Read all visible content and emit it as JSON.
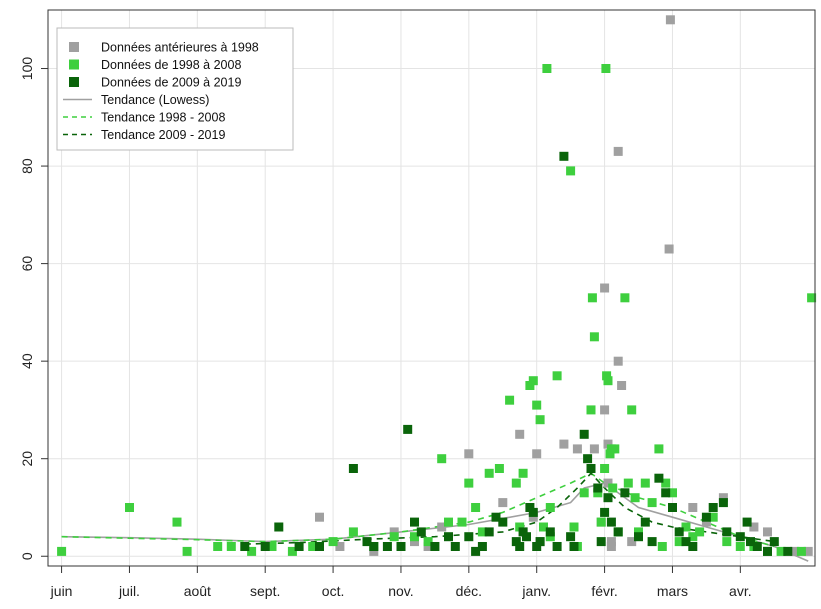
{
  "chart_data": {
    "type": "scatter",
    "title": "",
    "xlabel": "",
    "ylabel": "",
    "x_ticks": [
      "juin",
      "juil.",
      "août",
      "sept.",
      "oct.",
      "nov.",
      "déc.",
      "janv.",
      "févr.",
      "mars",
      "avr."
    ],
    "y_ticks": [
      0,
      20,
      40,
      60,
      80,
      100
    ],
    "ylim": [
      -2,
      112
    ],
    "xlim": [
      -0.2,
      11.1
    ],
    "grid": true,
    "legend_position": "top-left",
    "legend": [
      {
        "label": "Données antérieures à 1998",
        "kind": "square",
        "color": "#a0a0a0"
      },
      {
        "label": "Données de 1998 à 2008",
        "kind": "square",
        "color": "#3ecf3e"
      },
      {
        "label": "Données de 2009 à 2019",
        "kind": "square",
        "color": "#0a640a"
      },
      {
        "label": "Tendance (Lowess)",
        "kind": "line",
        "color": "#a0a0a0"
      },
      {
        "label": "Tendance 1998 - 2008",
        "kind": "dashed",
        "color": "#3ecf3e"
      },
      {
        "label": "Tendance 2009 - 2019",
        "kind": "dashed",
        "color": "#0a640a"
      }
    ],
    "series": [
      {
        "name": "Données antérieures à 1998",
        "color": "#a0a0a0",
        "points": [
          [
            3.8,
            8
          ],
          [
            4.1,
            2
          ],
          [
            4.6,
            1
          ],
          [
            4.9,
            5
          ],
          [
            5.2,
            3
          ],
          [
            5.4,
            2
          ],
          [
            5.6,
            6
          ],
          [
            6.0,
            21
          ],
          [
            6.5,
            11
          ],
          [
            6.75,
            25
          ],
          [
            6.8,
            5
          ],
          [
            6.95,
            8
          ],
          [
            7.0,
            21
          ],
          [
            7.05,
            3
          ],
          [
            7.4,
            23
          ],
          [
            7.6,
            22
          ],
          [
            7.85,
            22
          ],
          [
            7.95,
            7
          ],
          [
            8.0,
            30
          ],
          [
            8.0,
            55
          ],
          [
            8.05,
            23
          ],
          [
            8.05,
            15
          ],
          [
            8.1,
            3
          ],
          [
            8.1,
            2
          ],
          [
            8.2,
            83
          ],
          [
            8.2,
            40
          ],
          [
            8.25,
            35
          ],
          [
            8.4,
            3
          ],
          [
            8.95,
            63
          ],
          [
            8.97,
            110
          ],
          [
            9.3,
            10
          ],
          [
            9.5,
            7
          ],
          [
            9.75,
            12
          ],
          [
            10.2,
            6
          ],
          [
            10.4,
            5
          ],
          [
            10.8,
            1
          ],
          [
            11.0,
            1
          ]
        ]
      },
      {
        "name": "Données de 1998 à 2008",
        "color": "#3ecf3e",
        "points": [
          [
            0.0,
            1
          ],
          [
            1.0,
            10
          ],
          [
            1.7,
            7
          ],
          [
            1.85,
            1
          ],
          [
            2.3,
            2
          ],
          [
            2.5,
            2
          ],
          [
            2.8,
            1
          ],
          [
            3.1,
            2
          ],
          [
            3.4,
            1
          ],
          [
            3.7,
            2
          ],
          [
            4.0,
            3
          ],
          [
            4.3,
            5
          ],
          [
            4.6,
            2
          ],
          [
            4.9,
            4
          ],
          [
            5.2,
            4
          ],
          [
            5.4,
            3
          ],
          [
            5.6,
            20
          ],
          [
            5.7,
            7
          ],
          [
            5.9,
            7
          ],
          [
            6.0,
            15
          ],
          [
            6.1,
            10
          ],
          [
            6.2,
            5
          ],
          [
            6.3,
            17
          ],
          [
            6.45,
            18
          ],
          [
            6.6,
            32
          ],
          [
            6.7,
            15
          ],
          [
            6.75,
            6
          ],
          [
            6.8,
            17
          ],
          [
            6.9,
            35
          ],
          [
            6.95,
            36
          ],
          [
            7.0,
            31
          ],
          [
            7.05,
            28
          ],
          [
            7.1,
            6
          ],
          [
            7.15,
            100
          ],
          [
            7.2,
            10
          ],
          [
            7.2,
            4
          ],
          [
            7.3,
            37
          ],
          [
            7.5,
            79
          ],
          [
            7.55,
            6
          ],
          [
            7.6,
            2
          ],
          [
            7.7,
            13
          ],
          [
            7.8,
            30
          ],
          [
            7.82,
            53
          ],
          [
            7.85,
            45
          ],
          [
            7.9,
            13
          ],
          [
            7.95,
            7
          ],
          [
            8.0,
            18
          ],
          [
            8.02,
            100
          ],
          [
            8.03,
            37
          ],
          [
            8.05,
            36
          ],
          [
            8.08,
            21
          ],
          [
            8.1,
            22
          ],
          [
            8.12,
            14
          ],
          [
            8.15,
            22
          ],
          [
            8.2,
            5
          ],
          [
            8.3,
            53
          ],
          [
            8.35,
            15
          ],
          [
            8.4,
            30
          ],
          [
            8.45,
            12
          ],
          [
            8.5,
            5
          ],
          [
            8.6,
            15
          ],
          [
            8.7,
            11
          ],
          [
            8.8,
            22
          ],
          [
            8.85,
            2
          ],
          [
            8.9,
            15
          ],
          [
            9.0,
            13
          ],
          [
            9.1,
            3
          ],
          [
            9.2,
            6
          ],
          [
            9.3,
            4
          ],
          [
            9.4,
            5
          ],
          [
            9.6,
            8
          ],
          [
            9.8,
            3
          ],
          [
            10.0,
            2
          ],
          [
            10.2,
            2
          ],
          [
            10.4,
            1
          ],
          [
            10.6,
            1
          ],
          [
            10.9,
            1
          ],
          [
            11.05,
            53
          ]
        ]
      },
      {
        "name": "Données de 2009 à 2019",
        "color": "#0a640a",
        "points": [
          [
            2.7,
            2
          ],
          [
            3.0,
            2
          ],
          [
            3.2,
            6
          ],
          [
            3.5,
            2
          ],
          [
            3.8,
            2
          ],
          [
            4.3,
            18
          ],
          [
            4.5,
            3
          ],
          [
            4.6,
            2
          ],
          [
            4.8,
            2
          ],
          [
            5.0,
            2
          ],
          [
            5.1,
            26
          ],
          [
            5.2,
            7
          ],
          [
            5.3,
            5
          ],
          [
            5.5,
            2
          ],
          [
            5.7,
            4
          ],
          [
            5.8,
            2
          ],
          [
            6.0,
            4
          ],
          [
            6.1,
            1
          ],
          [
            6.2,
            2
          ],
          [
            6.3,
            5
          ],
          [
            6.4,
            8
          ],
          [
            6.5,
            7
          ],
          [
            6.7,
            3
          ],
          [
            6.75,
            2
          ],
          [
            6.8,
            5
          ],
          [
            6.85,
            4
          ],
          [
            6.9,
            10
          ],
          [
            6.95,
            9
          ],
          [
            7.0,
            2
          ],
          [
            7.05,
            3
          ],
          [
            7.2,
            5
          ],
          [
            7.3,
            2
          ],
          [
            7.4,
            82
          ],
          [
            7.5,
            4
          ],
          [
            7.55,
            2
          ],
          [
            7.7,
            25
          ],
          [
            7.75,
            20
          ],
          [
            7.8,
            18
          ],
          [
            7.9,
            14
          ],
          [
            7.95,
            3
          ],
          [
            8.0,
            9
          ],
          [
            8.05,
            12
          ],
          [
            8.1,
            7
          ],
          [
            8.2,
            5
          ],
          [
            8.3,
            13
          ],
          [
            8.5,
            4
          ],
          [
            8.6,
            7
          ],
          [
            8.7,
            3
          ],
          [
            8.8,
            16
          ],
          [
            8.9,
            13
          ],
          [
            9.0,
            10
          ],
          [
            9.1,
            5
          ],
          [
            9.2,
            3
          ],
          [
            9.3,
            2
          ],
          [
            9.5,
            8
          ],
          [
            9.6,
            10
          ],
          [
            9.75,
            11
          ],
          [
            9.8,
            5
          ],
          [
            10.0,
            4
          ],
          [
            10.1,
            7
          ],
          [
            10.15,
            3
          ],
          [
            10.25,
            2
          ],
          [
            10.4,
            1
          ],
          [
            10.5,
            3
          ],
          [
            10.7,
            1
          ]
        ]
      }
    ],
    "trends": [
      {
        "name": "Tendance (Lowess)",
        "style": "solid",
        "color": "#a0a0a0",
        "points": [
          [
            0,
            4
          ],
          [
            1,
            3.8
          ],
          [
            2,
            3.5
          ],
          [
            3,
            3
          ],
          [
            4,
            3.5
          ],
          [
            5,
            5
          ],
          [
            6,
            6.5
          ],
          [
            7,
            9
          ],
          [
            7.5,
            11
          ],
          [
            7.7,
            14
          ],
          [
            8.0,
            15
          ],
          [
            8.5,
            10
          ],
          [
            9,
            8
          ],
          [
            9.5,
            6
          ],
          [
            10,
            4
          ],
          [
            10.5,
            2
          ],
          [
            11,
            -1
          ]
        ]
      },
      {
        "name": "Tendance 1998 - 2008",
        "style": "dashed",
        "color": "#3ecf3e",
        "points": [
          [
            0,
            4
          ],
          [
            1,
            3.7
          ],
          [
            2,
            3.4
          ],
          [
            3,
            3
          ],
          [
            4,
            3.5
          ],
          [
            5,
            5
          ],
          [
            6,
            7
          ],
          [
            6.5,
            9
          ],
          [
            7,
            12
          ],
          [
            7.5,
            15
          ],
          [
            7.8,
            17
          ],
          [
            8,
            15
          ],
          [
            8.5,
            12
          ],
          [
            9,
            10
          ],
          [
            9.5,
            7
          ],
          [
            10,
            4
          ],
          [
            10.5,
            2
          ]
        ]
      },
      {
        "name": "Tendance 2009 - 2019",
        "style": "dashed",
        "color": "#0a640a",
        "points": [
          [
            2.7,
            2.5
          ],
          [
            3.5,
            2.8
          ],
          [
            4.5,
            3.5
          ],
          [
            5.5,
            4
          ],
          [
            6.5,
            5
          ],
          [
            7,
            7
          ],
          [
            7.3,
            10
          ],
          [
            7.6,
            14
          ],
          [
            7.8,
            17
          ],
          [
            8,
            14
          ],
          [
            8.3,
            10
          ],
          [
            8.7,
            7
          ],
          [
            9,
            6
          ],
          [
            9.5,
            5
          ],
          [
            10,
            4
          ],
          [
            10.5,
            3
          ]
        ]
      }
    ]
  }
}
